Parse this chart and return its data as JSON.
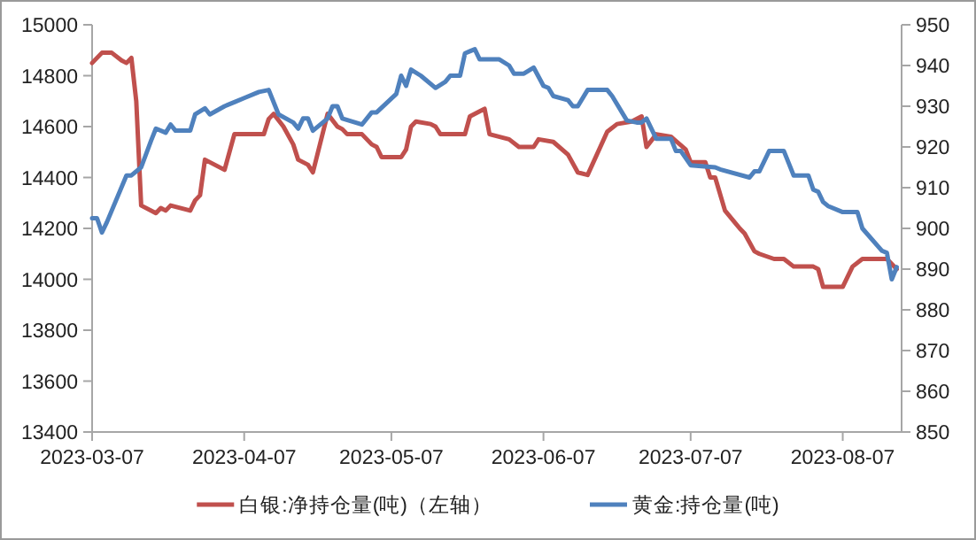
{
  "chart_data": {
    "type": "line",
    "legend": "bottom",
    "xlim": [
      "2023-03-07",
      "2023-08-19"
    ],
    "xticks": [
      "2023-03-07",
      "2023-04-07",
      "2023-05-07",
      "2023-06-07",
      "2023-07-07",
      "2023-08-07"
    ],
    "ylim": [
      13400,
      15000
    ],
    "yticks": [
      13400,
      13600,
      13800,
      14000,
      14200,
      14400,
      14600,
      14800,
      15000
    ],
    "y2lim": [
      850,
      950
    ],
    "y2ticks": [
      850,
      860,
      870,
      880,
      890,
      900,
      910,
      920,
      930,
      940,
      950
    ],
    "series": [
      {
        "name": "白银:净持仓量(吨)（左轴）",
        "color": "#c0504d",
        "x": [
          "2023-03-07",
          "2023-03-09",
          "2023-03-11",
          "2023-03-13",
          "2023-03-14",
          "2023-03-15",
          "2023-03-16",
          "2023-03-17",
          "2023-03-20",
          "2023-03-21",
          "2023-03-22",
          "2023-03-23",
          "2023-03-27",
          "2023-03-28",
          "2023-03-29",
          "2023-03-30",
          "2023-04-03",
          "2023-04-05",
          "2023-04-11",
          "2023-04-12",
          "2023-04-13",
          "2023-04-15",
          "2023-04-17",
          "2023-04-18",
          "2023-04-20",
          "2023-04-21",
          "2023-04-24",
          "2023-04-26",
          "2023-04-27",
          "2023-04-28",
          "2023-05-01",
          "2023-05-03",
          "2023-05-04",
          "2023-05-05",
          "2023-05-09",
          "2023-05-10",
          "2023-05-11",
          "2023-05-12",
          "2023-05-15",
          "2023-05-16",
          "2023-05-17",
          "2023-05-22",
          "2023-05-23",
          "2023-05-25",
          "2023-05-26",
          "2023-05-27",
          "2023-05-31",
          "2023-06-02",
          "2023-06-05",
          "2023-06-06",
          "2023-06-09",
          "2023-06-12",
          "2023-06-14",
          "2023-06-16",
          "2023-06-20",
          "2023-06-22",
          "2023-06-25",
          "2023-06-27",
          "2023-06-28",
          "2023-06-30",
          "2023-07-03",
          "2023-07-06",
          "2023-07-07",
          "2023-07-10",
          "2023-07-11",
          "2023-07-12",
          "2023-07-14",
          "2023-07-17",
          "2023-07-18",
          "2023-07-20",
          "2023-07-21",
          "2023-07-24",
          "2023-07-26",
          "2023-07-28",
          "2023-08-01",
          "2023-08-02",
          "2023-08-03",
          "2023-08-07",
          "2023-08-09",
          "2023-08-11",
          "2023-08-16",
          "2023-08-18"
        ],
        "values": [
          14850,
          14890,
          14890,
          14860,
          14850,
          14870,
          14700,
          14290,
          14260,
          14280,
          14270,
          14290,
          14270,
          14310,
          14330,
          14470,
          14430,
          14570,
          14570,
          14630,
          14650,
          14600,
          14530,
          14470,
          14450,
          14420,
          14650,
          14600,
          14590,
          14570,
          14570,
          14530,
          14520,
          14480,
          14480,
          14510,
          14600,
          14620,
          14610,
          14600,
          14570,
          14570,
          14640,
          14660,
          14670,
          14570,
          14550,
          14520,
          14520,
          14550,
          14540,
          14490,
          14420,
          14410,
          14580,
          14610,
          14620,
          14640,
          14520,
          14570,
          14560,
          14510,
          14460,
          14460,
          14400,
          14400,
          14270,
          14200,
          14180,
          14110,
          14100,
          14080,
          14080,
          14050,
          14050,
          14040,
          13970,
          13970,
          14050,
          14080,
          14080,
          14040
        ]
      },
      {
        "name": "黄金:持仓量(吨)",
        "color": "#4f81bd",
        "axis": "y2",
        "x": [
          "2023-03-07",
          "2023-03-08",
          "2023-03-09",
          "2023-03-10",
          "2023-03-14",
          "2023-03-15",
          "2023-03-17",
          "2023-03-19",
          "2023-03-20",
          "2023-03-22",
          "2023-03-23",
          "2023-03-24",
          "2023-03-27",
          "2023-03-28",
          "2023-03-30",
          "2023-03-31",
          "2023-04-03",
          "2023-04-05",
          "2023-04-07",
          "2023-04-10",
          "2023-04-12",
          "2023-04-14",
          "2023-04-17",
          "2023-04-18",
          "2023-04-19",
          "2023-04-20",
          "2023-04-21",
          "2023-04-24",
          "2023-04-25",
          "2023-04-26",
          "2023-04-27",
          "2023-05-01",
          "2023-05-03",
          "2023-05-04",
          "2023-05-08",
          "2023-05-09",
          "2023-05-10",
          "2023-05-11",
          "2023-05-13",
          "2023-05-16",
          "2023-05-18",
          "2023-05-19",
          "2023-05-21",
          "2023-05-22",
          "2023-05-23",
          "2023-05-24",
          "2023-05-25",
          "2023-05-29",
          "2023-05-31",
          "2023-06-01",
          "2023-06-03",
          "2023-06-05",
          "2023-06-07",
          "2023-06-08",
          "2023-06-09",
          "2023-06-12",
          "2023-06-13",
          "2023-06-14",
          "2023-06-16",
          "2023-06-20",
          "2023-06-21",
          "2023-06-24",
          "2023-06-26",
          "2023-06-27",
          "2023-06-28",
          "2023-06-30",
          "2023-07-03",
          "2023-07-04",
          "2023-07-05",
          "2023-07-07",
          "2023-07-12",
          "2023-07-13",
          "2023-07-19",
          "2023-07-20",
          "2023-07-21",
          "2023-07-23",
          "2023-07-26",
          "2023-07-27",
          "2023-07-28",
          "2023-07-31",
          "2023-08-01",
          "2023-08-02",
          "2023-08-03",
          "2023-08-04",
          "2023-08-07",
          "2023-08-10",
          "2023-08-11",
          "2023-08-15",
          "2023-08-16",
          "2023-08-17",
          "2023-08-18"
        ],
        "values": [
          902.5,
          902.5,
          899,
          901.5,
          913,
          913,
          915,
          921.5,
          924.5,
          923.5,
          925.5,
          924,
          924,
          928,
          929.5,
          928,
          930,
          931,
          932,
          933.5,
          934,
          928,
          926,
          924.5,
          927,
          927,
          924,
          927,
          930,
          930,
          927,
          925.5,
          928.5,
          928.5,
          933,
          937.5,
          935,
          939,
          937.5,
          934.5,
          936,
          937.5,
          937.5,
          943,
          943.5,
          944,
          941.5,
          941.5,
          940,
          938,
          938,
          939.5,
          935,
          934.5,
          932.5,
          931.5,
          930,
          930,
          934,
          934,
          932.5,
          926.5,
          926,
          926,
          927,
          922,
          922,
          919,
          919,
          915.5,
          915,
          914.5,
          912.5,
          914,
          914,
          919,
          919,
          916,
          913,
          913,
          909.5,
          909,
          906.5,
          905.5,
          904,
          904,
          900,
          894.5,
          894,
          887.5,
          890.5
        ]
      }
    ]
  }
}
